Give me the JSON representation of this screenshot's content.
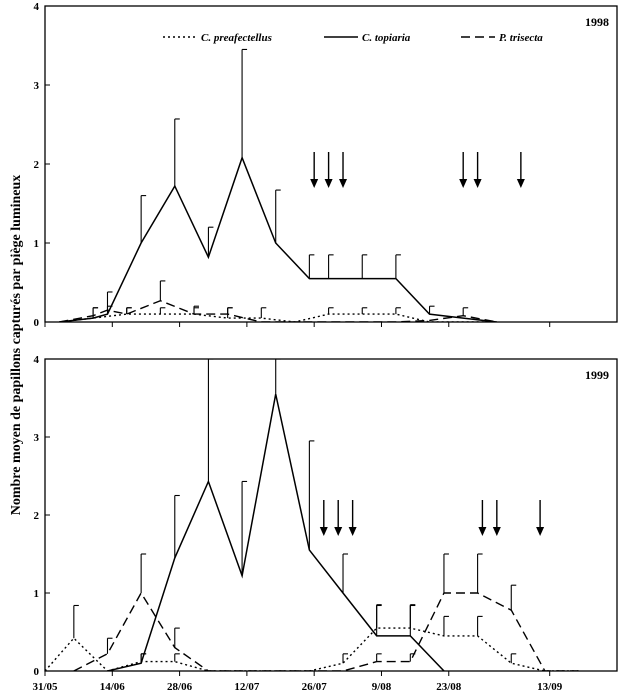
{
  "figure": {
    "ylabel": "Nombre moyen de papillons capturés par piège lumineux",
    "x_tick_labels": [
      "31/05",
      "14/06",
      "28/06",
      "12/07",
      "26/07",
      "9/08",
      "23/08",
      "13/09"
    ]
  },
  "chart_data": [
    {
      "type": "line",
      "year_label": "1998",
      "ylim": [
        0,
        4
      ],
      "y_ticks": [
        "0",
        "1",
        "2",
        "3",
        "4"
      ],
      "x_axis": {
        "first_date": "31/05",
        "last_date": "27/09",
        "unit": "day",
        "tick_labels": [
          "31/05",
          "14/06",
          "28/06",
          "12/07",
          "26/07",
          "9/08",
          "23/08",
          "13/09"
        ]
      },
      "legend": {
        "placement": "top",
        "entries": [
          "C. preafectellus",
          "C. topiaria",
          "P. trisecta"
        ]
      },
      "grid": false,
      "series": [
        {
          "name": "C. preafectellus",
          "style": "dotted",
          "x": [
            "03/06",
            "10/06",
            "17/06",
            "24/06",
            "01/07",
            "08/07",
            "15/07",
            "22/07",
            "29/07",
            "05/08",
            "12/08",
            "19/08",
            "26/08",
            "02/09"
          ],
          "y": [
            0,
            0.05,
            0.1,
            0.1,
            0.1,
            0.05,
            0.05,
            0,
            0.1,
            0.1,
            0.1,
            0,
            0,
            0
          ],
          "error_top": [
            null,
            0.18,
            0.18,
            0.18,
            0.2,
            0.18,
            0.18,
            null,
            0.18,
            0.18,
            0.18,
            null,
            null,
            null
          ]
        },
        {
          "name": "C. topiaria",
          "style": "solid",
          "x": [
            "03/06",
            "10/06",
            "13/06",
            "20/06",
            "27/06",
            "04/07",
            "11/07",
            "18/07",
            "25/07",
            "29/07",
            "05/08",
            "12/08",
            "19/08",
            "26/08",
            "02/09"
          ],
          "y": [
            0,
            0.05,
            0.1,
            1.0,
            1.72,
            0.82,
            2.08,
            1.0,
            0.55,
            0.55,
            0.55,
            0.55,
            0.1,
            0.05,
            0
          ],
          "error_top": [
            null,
            0.18,
            0.38,
            1.6,
            2.57,
            1.2,
            3.45,
            1.67,
            0.85,
            0.85,
            0.85,
            0.85,
            0.2,
            null,
            null
          ]
        },
        {
          "name": "P. trisecta",
          "style": "dashed",
          "x": [
            "03/06",
            "10/06",
            "13/06",
            "17/06",
            "24/06",
            "01/07",
            "08/07",
            "15/07",
            "22/07",
            "29/07",
            "05/08",
            "12/08",
            "19/08",
            "26/08",
            "02/09"
          ],
          "y": [
            0,
            0.08,
            0.15,
            0.1,
            0.27,
            0.1,
            0.1,
            0,
            0,
            0,
            0,
            0,
            0.02,
            0.08,
            0
          ],
          "error_top": [
            null,
            null,
            0.2,
            0.18,
            0.52,
            0.18,
            0.18,
            null,
            null,
            null,
            null,
            null,
            null,
            0.18,
            null
          ]
        }
      ],
      "arrows_dates": [
        "26/07",
        "29/07",
        "01/08",
        "26/08",
        "29/08",
        "07/09"
      ]
    },
    {
      "type": "line",
      "year_label": "1999",
      "ylim": [
        0,
        4
      ],
      "y_ticks": [
        "0",
        "1",
        "2",
        "3",
        "4"
      ],
      "x_axis": {
        "first_date": "31/05",
        "last_date": "27/09",
        "unit": "day",
        "tick_labels": [
          "31/05",
          "14/06",
          "28/06",
          "12/07",
          "26/07",
          "9/08",
          "23/08",
          "13/09"
        ]
      },
      "grid": false,
      "series": [
        {
          "name": "C. preafectellus",
          "style": "dotted",
          "x": [
            "31/05",
            "06/06",
            "13/06",
            "20/06",
            "27/06",
            "04/07",
            "25/07",
            "01/08",
            "08/08",
            "15/08",
            "22/08",
            "29/08",
            "05/09",
            "12/09",
            "19/09"
          ],
          "y": [
            0,
            0.42,
            0,
            0.12,
            0.12,
            0,
            0,
            0.1,
            0.55,
            0.55,
            0.45,
            0.45,
            0.1,
            0,
            0
          ],
          "error_top": [
            null,
            0.84,
            null,
            0.22,
            0.22,
            null,
            null,
            0.22,
            0.84,
            0.84,
            0.7,
            0.7,
            0.22,
            null,
            null
          ]
        },
        {
          "name": "C. topiaria",
          "style": "solid",
          "x": [
            "13/06",
            "20/06",
            "27/06",
            "04/07",
            "11/07",
            "18/07",
            "25/07",
            "01/08",
            "08/08",
            "15/08",
            "22/08"
          ],
          "y": [
            0,
            0.1,
            1.45,
            2.43,
            1.22,
            3.55,
            1.55,
            1.0,
            0.45,
            0.45,
            0
          ],
          "error_top": [
            null,
            0.22,
            2.25,
            4.0,
            2.43,
            4.0,
            2.95,
            1.5,
            0.85,
            0.85,
            null
          ]
        },
        {
          "name": "P. trisecta",
          "style": "dashed",
          "x": [
            "06/06",
            "13/06",
            "20/06",
            "27/06",
            "04/07",
            "01/08",
            "08/08",
            "15/08",
            "22/08",
            "29/08",
            "05/09",
            "12/09",
            "19/09"
          ],
          "y": [
            0,
            0.22,
            1.0,
            0.3,
            0,
            0,
            0.12,
            0.12,
            1.0,
            1.0,
            0.78,
            0,
            0
          ],
          "error_top": [
            null,
            0.42,
            1.5,
            0.55,
            null,
            null,
            0.22,
            0.22,
            1.5,
            1.5,
            1.1,
            null,
            null
          ]
        }
      ],
      "arrows_dates": [
        "28/07",
        "31/07",
        "03/08",
        "30/08",
        "02/09",
        "11/09"
      ]
    }
  ],
  "colors": {
    "ink": "#000000",
    "background": "#ffffff"
  }
}
